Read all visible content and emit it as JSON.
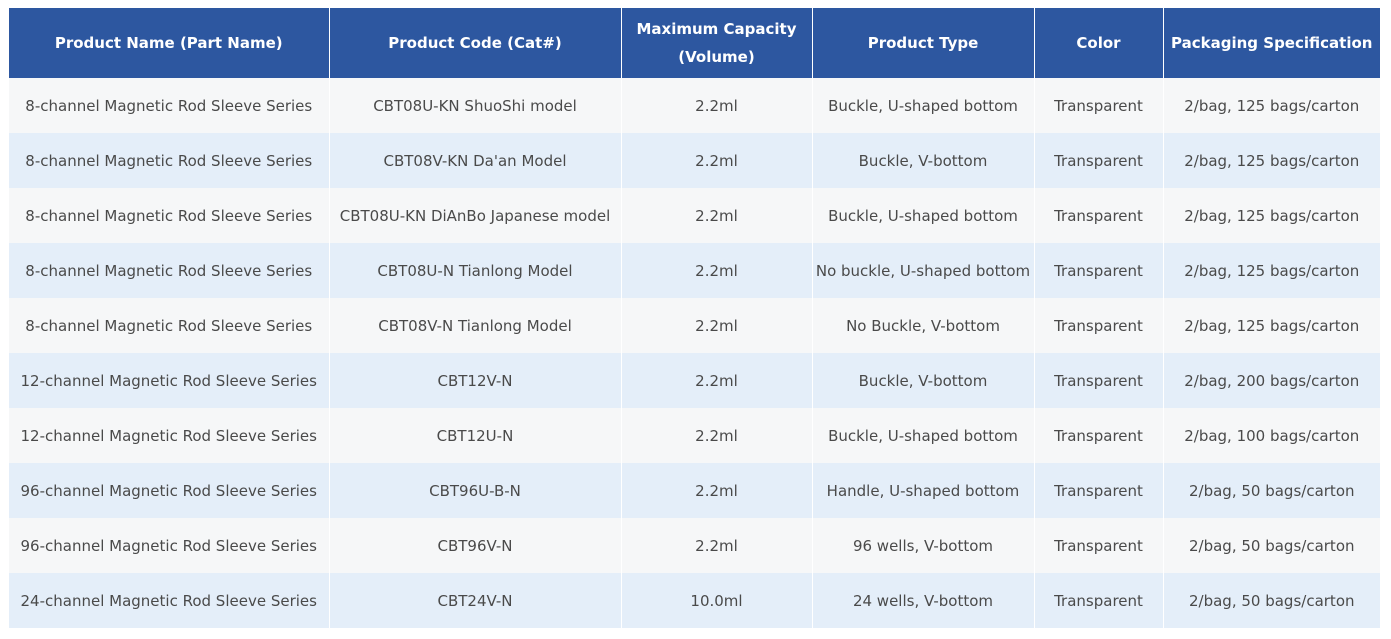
{
  "table": {
    "headers": [
      "Product Name (Part Name)",
      "Product Code (Cat#)",
      "Maximum Capacity (Volume)",
      "Product Type",
      "Color",
      "Packaging Specification"
    ],
    "rows": [
      [
        "8-channel Magnetic Rod Sleeve Series",
        "CBT08U-KN ShuoShi model",
        "2.2ml",
        "Buckle, U-shaped bottom",
        "Transparent",
        "2/bag, 125 bags/carton"
      ],
      [
        "8-channel Magnetic Rod Sleeve Series",
        "CBT08V-KN Da'an Model",
        "2.2ml",
        "Buckle, V-bottom",
        "Transparent",
        "2/bag, 125 bags/carton"
      ],
      [
        "8-channel Magnetic Rod Sleeve Series",
        "CBT08U-KN DiAnBo Japanese model",
        "2.2ml",
        "Buckle, U-shaped bottom",
        "Transparent",
        "2/bag, 125 bags/carton"
      ],
      [
        "8-channel Magnetic Rod Sleeve Series",
        "CBT08U-N Tianlong Model",
        "2.2ml",
        "No buckle, U-shaped bottom",
        "Transparent",
        "2/bag, 125 bags/carton"
      ],
      [
        "8-channel Magnetic Rod Sleeve Series",
        "CBT08V-N Tianlong Model",
        "2.2ml",
        "No Buckle, V-bottom",
        "Transparent",
        "2/bag, 125 bags/carton"
      ],
      [
        "12-channel Magnetic Rod Sleeve Series",
        "CBT12V-N",
        "2.2ml",
        "Buckle, V-bottom",
        "Transparent",
        "2/bag, 200 bags/carton"
      ],
      [
        "12-channel Magnetic Rod Sleeve Series",
        "CBT12U-N",
        "2.2ml",
        "Buckle, U-shaped bottom",
        "Transparent",
        "2/bag, 100 bags/carton"
      ],
      [
        "96-channel Magnetic Rod Sleeve Series",
        "CBT96U-B-N",
        "2.2ml",
        "Handle, U-shaped bottom",
        "Transparent",
        "2/bag, 50 bags/carton"
      ],
      [
        "96-channel Magnetic Rod Sleeve Series",
        "CBT96V-N",
        "2.2ml",
        "96 wells, V-bottom",
        "Transparent",
        "2/bag, 50 bags/carton"
      ],
      [
        "24-channel Magnetic Rod Sleeve Series",
        "CBT24V-N",
        "10.0ml",
        "24 wells, V-bottom",
        "Transparent",
        "2/bag, 50 bags/carton"
      ]
    ]
  },
  "colors": {
    "header_bg": "#2d57a0",
    "row_light": "#f6f7f8",
    "row_blue": "#e4eef9"
  }
}
